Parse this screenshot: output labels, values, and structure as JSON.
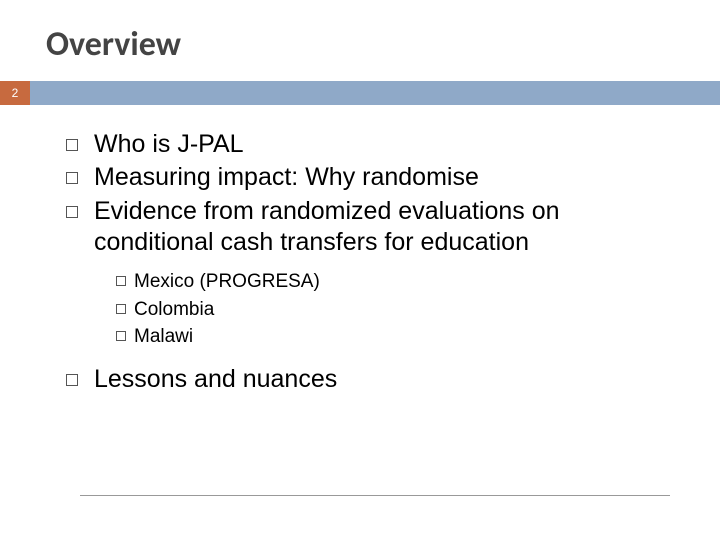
{
  "title": "Overview",
  "page_number": "2",
  "colors": {
    "page_box_bg": "#c76a3f",
    "divider_bg": "#8fa9c8",
    "title_color": "#444444",
    "text_color": "#000000",
    "bullet_border": "#555555",
    "footer_line": "#999999"
  },
  "bullets": {
    "item0": "Who is J-PAL",
    "item1": "Measuring impact: Why randomise",
    "item2": "Evidence from randomized evaluations on conditional cash transfers for education",
    "item3": "Lessons and nuances"
  },
  "sub_bullets": {
    "s0": "Mexico (PROGRESA)",
    "s1": "Colombia",
    "s2": "Malawi"
  }
}
